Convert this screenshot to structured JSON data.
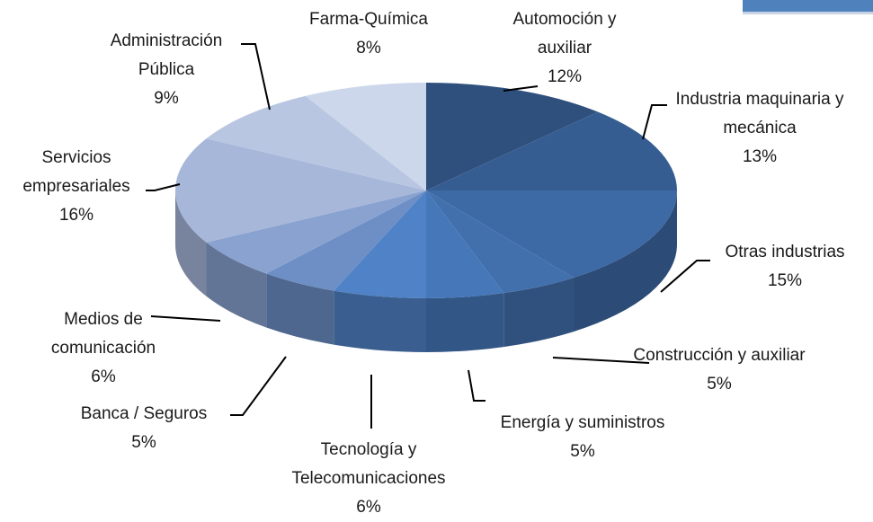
{
  "chart_data": {
    "type": "pie3d",
    "categories": [
      "Automoción y auxiliar",
      "Industria maquinaria y mecánica",
      "Otras industrias",
      "Construcción y auxiliar",
      "Energía y suministros",
      "Tecnología y Telecomunicaciones",
      "Banca / Seguros",
      "Medios de comunicación",
      "Servicios empresariales",
      "Administración Pública",
      "Farma-Química"
    ],
    "values": [
      12,
      13,
      15,
      5,
      5,
      6,
      5,
      6,
      16,
      9,
      8
    ],
    "value_labels": [
      "12%",
      "13%",
      "15%",
      "5%",
      "5%",
      "6%",
      "5%",
      "6%",
      "16%",
      "9%",
      "8%"
    ],
    "colors": [
      "#2f4f7c",
      "#365d92",
      "#3d69a5",
      "#4270ad",
      "#4677b9",
      "#4f82c6",
      "#6d8fc5",
      "#8aa2d0",
      "#a6b7da",
      "#b8c6e2",
      "#cdd7eb"
    ]
  }
}
